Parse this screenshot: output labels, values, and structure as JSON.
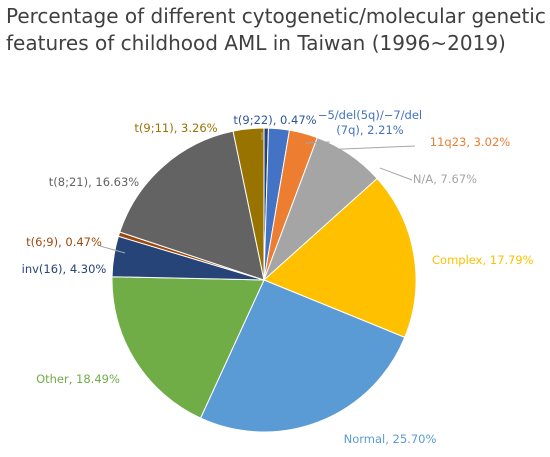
{
  "chart_data": {
    "type": "pie",
    "title_lines": [
      "Percentage of different cytogenetic/molecular genetic",
      "features of childhood AML in Taiwan (1996~2019)"
    ],
    "slices": [
      {
        "name": "t(9;22)",
        "value": 0.47,
        "label_lines": [
          "t(9;22), 0.47%"
        ],
        "color": "#264478"
      },
      {
        "name": "−5/del(5q)/−7/del (7q)",
        "value": 2.21,
        "label_lines": [
          "−5/del(5q)/−7/del",
          "(7q), 2.21%"
        ],
        "color": "#4472C4"
      },
      {
        "name": "11q23",
        "value": 3.02,
        "label_lines": [
          "11q23, 3.02%"
        ],
        "color": "#ED7D31"
      },
      {
        "name": "N/A",
        "value": 7.67,
        "label_lines": [
          "N/A, 7.67%"
        ],
        "color": "#A5A5A5"
      },
      {
        "name": "Complex",
        "value": 17.79,
        "label_lines": [
          "Complex, 17.79%"
        ],
        "color": "#FFC000"
      },
      {
        "name": "Normal",
        "value": 25.7,
        "label_lines": [
          "Normal, 25.70%"
        ],
        "color": "#5B9BD5"
      },
      {
        "name": "Other",
        "value": 18.49,
        "label_lines": [
          "Other, 18.49%"
        ],
        "color": "#70AD47"
      },
      {
        "name": "inv(16)",
        "value": 4.3,
        "label_lines": [
          "inv(16), 4.30%"
        ],
        "color": "#264478"
      },
      {
        "name": "t(6;9)",
        "value": 0.47,
        "label_lines": [
          "t(6;9), 0.47%"
        ],
        "color": "#9E480E"
      },
      {
        "name": "t(8;21)",
        "value": 16.63,
        "label_lines": [
          "t(8;21), 16.63%"
        ],
        "color": "#636363"
      },
      {
        "name": "t(9;11)",
        "value": 3.26,
        "label_lines": [
          "t(9;11), 3.26%"
        ],
        "color": "#997300"
      }
    ]
  }
}
